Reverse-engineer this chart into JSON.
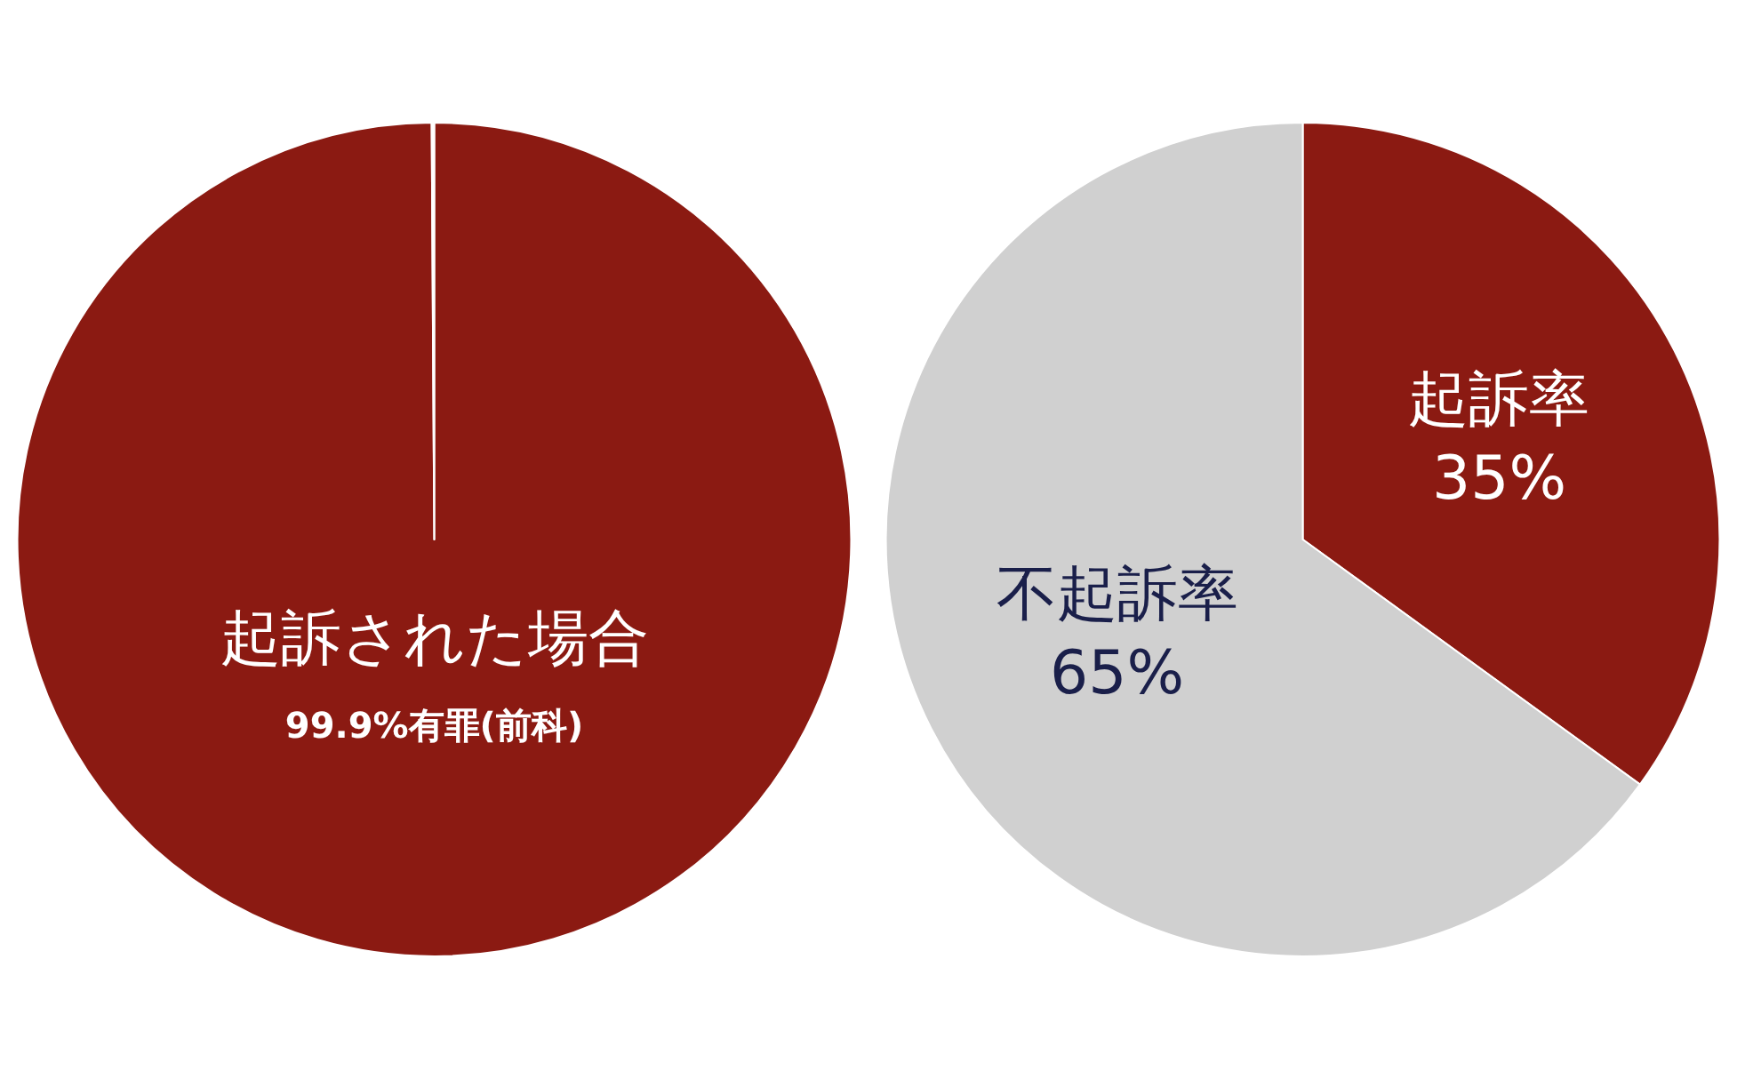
{
  "chart_data": [
    {
      "type": "pie",
      "categories": [
        "起訴された場合",
        null
      ],
      "values": [
        99.9,
        0.1
      ],
      "colors": [
        "#8b1a12",
        "#ffffff"
      ],
      "value_labels": [
        "99.9%有罪(前科)",
        null
      ]
    },
    {
      "type": "pie",
      "categories": [
        "起訴率",
        "不起訴率"
      ],
      "values": [
        35,
        65
      ],
      "colors": [
        "#8b1a12",
        "#d0d0d0"
      ],
      "value_labels": [
        "35%",
        "65%"
      ]
    }
  ]
}
